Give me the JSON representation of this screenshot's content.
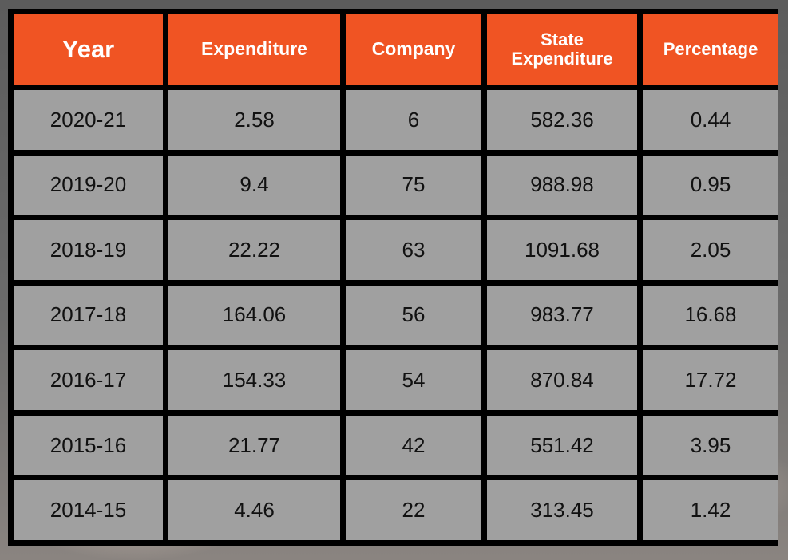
{
  "table": {
    "headers": [
      "Year",
      "Expenditure",
      "Company",
      "State Expenditure",
      "Percentage"
    ],
    "rows": [
      [
        "2020-21",
        "2.58",
        "6",
        "582.36",
        "0.44"
      ],
      [
        "2019-20",
        "9.4",
        "75",
        "988.98",
        "0.95"
      ],
      [
        "2018-19",
        "22.22",
        "63",
        "1091.68",
        "2.05"
      ],
      [
        "2017-18",
        "164.06",
        "56",
        "983.77",
        "16.68"
      ],
      [
        "2016-17",
        "154.33",
        "54",
        "870.84",
        "17.72"
      ],
      [
        "2015-16",
        "21.77",
        "42",
        "551.42",
        "3.95"
      ],
      [
        "2014-15",
        "4.46",
        "22",
        "313.45",
        "1.42"
      ]
    ]
  },
  "colors": {
    "header_bg": "#f05423",
    "header_text": "#ffffff",
    "cell_bg": "#cdcdcd",
    "grid": "#000000"
  },
  "chart_data": {
    "type": "table",
    "columns": [
      "Year",
      "Expenditure",
      "Company",
      "State Expenditure",
      "Percentage"
    ],
    "rows": [
      {
        "Year": "2020-21",
        "Expenditure": 2.58,
        "Company": 6,
        "State Expenditure": 582.36,
        "Percentage": 0.44
      },
      {
        "Year": "2019-20",
        "Expenditure": 9.4,
        "Company": 75,
        "State Expenditure": 988.98,
        "Percentage": 0.95
      },
      {
        "Year": "2018-19",
        "Expenditure": 22.22,
        "Company": 63,
        "State Expenditure": 1091.68,
        "Percentage": 2.05
      },
      {
        "Year": "2017-18",
        "Expenditure": 164.06,
        "Company": 56,
        "State Expenditure": 983.77,
        "Percentage": 16.68
      },
      {
        "Year": "2016-17",
        "Expenditure": 154.33,
        "Company": 54,
        "State Expenditure": 870.84,
        "Percentage": 17.72
      },
      {
        "Year": "2015-16",
        "Expenditure": 21.77,
        "Company": 42,
        "State Expenditure": 551.42,
        "Percentage": 3.95
      },
      {
        "Year": "2014-15",
        "Expenditure": 4.46,
        "Company": 22,
        "State Expenditure": 313.45,
        "Percentage": 1.42
      }
    ]
  }
}
